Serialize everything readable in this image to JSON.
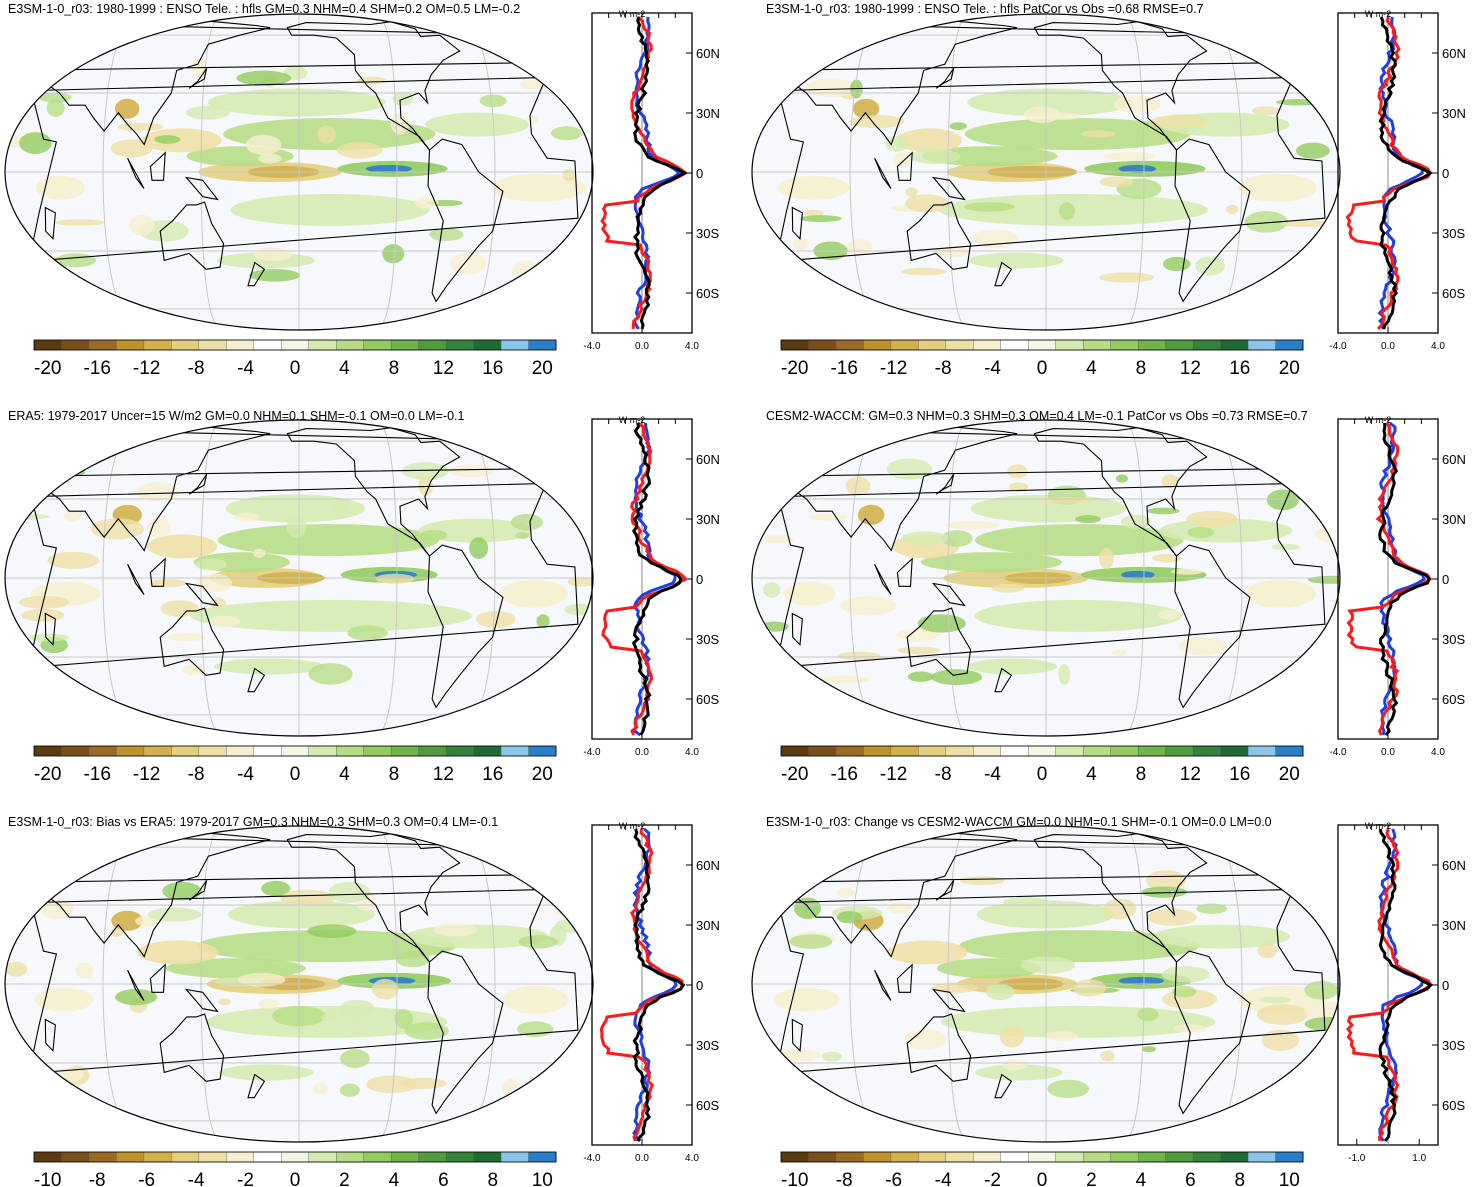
{
  "panels": [
    {
      "title": "E3SM-1-0_r03: 1980-1999 : ENSO Tele. : hfls GM=0.3 NHM=0.4 SHM=0.2 OM=0.5 LM=-0.2"
    },
    {
      "title": "E3SM-1-0_r03: 1980-1999 : ENSO Tele. : hfls PatCor vs Obs =0.68 RMSE=0.7"
    },
    {
      "title": "ERA5: 1979-2017 Uncer=15 W/m2 GM=0.0 NHM=0.1 SHM=-0.1 OM=0.0 LM=-0.1"
    },
    {
      "title": "CESM2-WACCM: GM=0.3 NHM=0.3 SHM=0.3 OM=0.4 LM=-0.1 PatCor vs Obs =0.73 RMSE=0.7"
    },
    {
      "title": "E3SM-1-0_r03: Bias vs ERA5: 1979-2017 GM=0.3 NHM=0.3 SHM=0.3 OM=0.4 LM=-0.1"
    },
    {
      "title": "E3SM-1-0_r03: Change vs CESM2-WACCM GM=0.0 NHM=0.1 SHM=-0.1 OM=0.0 LM=0.0"
    }
  ],
  "chart_data": [
    {
      "type": "heatmap",
      "title": "E3SM-1-0_r03: 1980-1999 : ENSO Tele. : hfls GM=0.3 NHM=0.4 SHM=0.2 OM=0.5 LM=-0.2",
      "colorbar_ticks": [
        "-20",
        "-16",
        "-12",
        "-8",
        "-4",
        "0",
        "4",
        "8",
        "12",
        "16",
        "20"
      ],
      "profile": {
        "unit": "W m-2",
        "x_ticks": [
          "-4.0",
          "0.0",
          "4.0"
        ],
        "lat_ticks": [
          "60N",
          "30N",
          "0",
          "30S",
          "60S"
        ],
        "xlim": [
          -4,
          4
        ],
        "ylim": [
          -80,
          80
        ]
      }
    },
    {
      "type": "heatmap",
      "title": "E3SM-1-0_r03: 1980-1999 : ENSO Tele. : hfls PatCor vs Obs =0.68 RMSE=0.7",
      "colorbar_ticks": [
        "-20",
        "-16",
        "-12",
        "-8",
        "-4",
        "0",
        "4",
        "8",
        "12",
        "16",
        "20"
      ],
      "profile": {
        "unit": "W m-2",
        "x_ticks": [
          "-4.0",
          "0.0",
          "4.0"
        ],
        "lat_ticks": [
          "60N",
          "30N",
          "0",
          "30S",
          "60S"
        ],
        "xlim": [
          -4,
          4
        ],
        "ylim": [
          -80,
          80
        ]
      }
    },
    {
      "type": "heatmap",
      "title": "ERA5: 1979-2017 Uncer=15 W/m2 GM=0.0 NHM=0.1 SHM=-0.1 OM=0.0 LM=-0.1",
      "colorbar_ticks": [
        "-20",
        "-16",
        "-12",
        "-8",
        "-4",
        "0",
        "4",
        "8",
        "12",
        "16",
        "20"
      ],
      "profile": {
        "unit": "W m-2",
        "x_ticks": [
          "-4.0",
          "0.0",
          "4.0"
        ],
        "lat_ticks": [
          "60N",
          "30N",
          "0",
          "30S",
          "60S"
        ],
        "xlim": [
          -4,
          4
        ],
        "ylim": [
          -80,
          80
        ]
      }
    },
    {
      "type": "heatmap",
      "title": "CESM2-WACCM: GM=0.3 NHM=0.3 SHM=0.3 OM=0.4 LM=-0.1 PatCor vs Obs =0.73 RMSE=0.7",
      "colorbar_ticks": [
        "-20",
        "-16",
        "-12",
        "-8",
        "-4",
        "0",
        "4",
        "8",
        "12",
        "16",
        "20"
      ],
      "profile": {
        "unit": "W m-2",
        "x_ticks": [
          "-4.0",
          "0.0",
          "4.0"
        ],
        "lat_ticks": [
          "60N",
          "30N",
          "0",
          "30S",
          "60S"
        ],
        "xlim": [
          -4,
          4
        ],
        "ylim": [
          -80,
          80
        ]
      }
    },
    {
      "type": "heatmap",
      "title": "E3SM-1-0_r03: Bias vs ERA5: 1979-2017 GM=0.3 NHM=0.3 SHM=0.3 OM=0.4 LM=-0.1",
      "colorbar_ticks": [
        "-10",
        "-8",
        "-6",
        "-4",
        "-2",
        "0",
        "2",
        "4",
        "6",
        "8",
        "10"
      ],
      "profile": {
        "unit": "W m-2",
        "x_ticks": [
          "-4.0",
          "0.0",
          "4.0"
        ],
        "lat_ticks": [
          "60N",
          "30N",
          "0",
          "30S",
          "60S"
        ],
        "xlim": [
          -4,
          4
        ],
        "ylim": [
          -80,
          80
        ]
      }
    },
    {
      "type": "heatmap",
      "title": "E3SM-1-0_r03: Change vs CESM2-WACCM GM=0.0 NHM=0.1 SHM=-0.1 OM=0.0 LM=0.0",
      "colorbar_ticks": [
        "-10",
        "-8",
        "-6",
        "-4",
        "-2",
        "0",
        "2",
        "4",
        "6",
        "8",
        "10"
      ],
      "profile": {
        "unit": "W m-2",
        "x_ticks": [
          "-1.0",
          "1.0"
        ],
        "lat_ticks": [
          "60N",
          "30N",
          "0",
          "30S",
          "60S"
        ],
        "xlim": [
          -1.6,
          1.6
        ],
        "ylim": [
          -80,
          80
        ]
      }
    }
  ],
  "colormap": [
    "#5a3a10",
    "#7b4f1c",
    "#9a6a26",
    "#c0922d",
    "#d2b04e",
    "#e3cf7e",
    "#eee0a6",
    "#f6efcf",
    "#ffffff",
    "#f2f7e4",
    "#d5ebb2",
    "#b6dd86",
    "#92cc5f",
    "#6fb54a",
    "#4f9b3e",
    "#35823a",
    "#1f6b33",
    "#8bc6ea",
    "#2b7ec8"
  ],
  "profile_series_colors": {
    "model": "#ff1a1a",
    "obs": "#1f3fe6",
    "total": "#000000"
  }
}
